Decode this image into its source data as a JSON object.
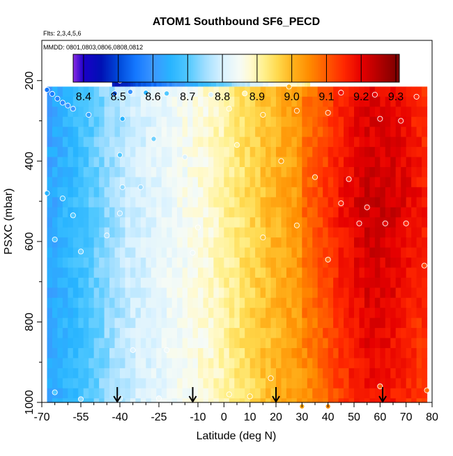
{
  "chart_data": {
    "type": "heatmap",
    "title": "ATOM1 Southbound SF6_PECD",
    "subtitle_flights": "Flts: 2,3,4,5,6",
    "subtitle_dates": "MMDD: 0801,0803,0806,0808,0812",
    "xlabel": "Latitude (deg N)",
    "ylabel": "PSXC (mbar)",
    "xlim": [
      -70,
      80
    ],
    "ylim": [
      1000,
      100
    ],
    "x_ticks": [
      "-70",
      "-55",
      "-40",
      "-25",
      "-10",
      "0",
      "10",
      "20",
      "30",
      "40",
      "50",
      "60",
      "70",
      "80"
    ],
    "x_tick_values": [
      -70,
      -55,
      -40,
      -25,
      -10,
      0,
      10,
      20,
      30,
      40,
      50,
      60,
      70,
      80
    ],
    "x_minor_ticks": [
      -65,
      -60,
      -50,
      -45,
      -35,
      -30,
      -20,
      -15,
      -5,
      5,
      15,
      25,
      35,
      45,
      55,
      65,
      75
    ],
    "y_ticks": [
      "200",
      "400",
      "600",
      "800",
      "1000"
    ],
    "y_tick_values": [
      200,
      400,
      600,
      800,
      1000
    ],
    "y_minor_ticks": [
      300,
      500,
      700,
      900
    ],
    "colorbar": {
      "min": 8.37,
      "max": 9.31,
      "ticks": [
        "8.4",
        "8.5",
        "8.6",
        "8.7",
        "8.8",
        "8.9",
        "9.0",
        "9.1",
        "9.2",
        "9.3"
      ],
      "tick_values": [
        8.4,
        8.5,
        8.6,
        8.7,
        8.8,
        8.9,
        9.0,
        9.1,
        9.2,
        9.3
      ],
      "stops": [
        [
          8.37,
          "#8a2be2"
        ],
        [
          8.4,
          "#1a00c8"
        ],
        [
          8.45,
          "#0010b4"
        ],
        [
          8.5,
          "#0048d8"
        ],
        [
          8.55,
          "#1478ff"
        ],
        [
          8.6,
          "#3c96ff"
        ],
        [
          8.65,
          "#28b4ff"
        ],
        [
          8.7,
          "#50c8ff"
        ],
        [
          8.75,
          "#a0deff"
        ],
        [
          8.8,
          "#daf2ff"
        ],
        [
          8.85,
          "#f6fbf6"
        ],
        [
          8.88,
          "#fffad0"
        ],
        [
          8.92,
          "#fff08c"
        ],
        [
          8.96,
          "#ffd84c"
        ],
        [
          9.0,
          "#ffb41e"
        ],
        [
          9.05,
          "#ff8c00"
        ],
        [
          9.1,
          "#ff5a00"
        ],
        [
          9.15,
          "#ff2800"
        ],
        [
          9.2,
          "#e60000"
        ],
        [
          9.25,
          "#b40000"
        ],
        [
          9.31,
          "#780000"
        ]
      ]
    },
    "grid": false,
    "value_bands": [
      {
        "lat": -68,
        "value": 8.62
      },
      {
        "lat": -55,
        "value": 8.68
      },
      {
        "lat": -45,
        "value": 8.74
      },
      {
        "lat": -35,
        "value": 8.79
      },
      {
        "lat": -25,
        "value": 8.82
      },
      {
        "lat": -15,
        "value": 8.85
      },
      {
        "lat": -5,
        "value": 8.88
      },
      {
        "lat": 5,
        "value": 8.93
      },
      {
        "lat": 15,
        "value": 8.98
      },
      {
        "lat": 25,
        "value": 9.02
      },
      {
        "lat": 35,
        "value": 9.06
      },
      {
        "lat": 45,
        "value": 9.13
      },
      {
        "lat": 55,
        "value": 9.18
      },
      {
        "lat": 65,
        "value": 9.17
      },
      {
        "lat": 78,
        "value": 9.12
      }
    ],
    "upper_layer": {
      "p_top": 160,
      "p_bottom": 215,
      "lat_min": -43,
      "lat_max": 33,
      "points": [
        {
          "lat": -43,
          "value": 8.45
        },
        {
          "lat": -30,
          "value": 8.52
        },
        {
          "lat": -15,
          "value": 8.62
        },
        {
          "lat": 0,
          "value": 8.72
        },
        {
          "lat": 15,
          "value": 8.82
        },
        {
          "lat": 25,
          "value": 8.88
        },
        {
          "lat": 33,
          "value": 8.92
        }
      ]
    },
    "main_field": {
      "p_top": 215,
      "p_bottom": 1000,
      "lat_min": -68,
      "lat_max": 78
    },
    "flight_arrows_lat": [
      -41,
      -12,
      20,
      61
    ],
    "sample_points": [
      {
        "lat": -68,
        "p": 223,
        "value": 8.55
      },
      {
        "lat": -66,
        "p": 233,
        "value": 8.56
      },
      {
        "lat": -64,
        "p": 245,
        "value": 8.57
      },
      {
        "lat": -62,
        "p": 255,
        "value": 8.58
      },
      {
        "lat": -60,
        "p": 262,
        "value": 8.6
      },
      {
        "lat": -58,
        "p": 270,
        "value": 8.6
      },
      {
        "lat": -42,
        "p": 232,
        "value": 8.52
      },
      {
        "lat": -36,
        "p": 228,
        "value": 8.6
      },
      {
        "lat": -30,
        "p": 230,
        "value": 8.65
      },
      {
        "lat": -22,
        "p": 232,
        "value": 8.7
      },
      {
        "lat": -5,
        "p": 235,
        "value": 8.8
      },
      {
        "lat": 8,
        "p": 232,
        "value": 8.9
      },
      {
        "lat": 25,
        "p": 215,
        "value": 9.0
      },
      {
        "lat": 45,
        "p": 230,
        "value": 9.18
      },
      {
        "lat": 58,
        "p": 235,
        "value": 9.2
      },
      {
        "lat": -40,
        "p": 200,
        "value": 8.45
      },
      {
        "lat": -52,
        "p": 285,
        "value": 8.62
      },
      {
        "lat": -39,
        "p": 295,
        "value": 8.65
      },
      {
        "lat": -27,
        "p": 345,
        "value": 8.72
      },
      {
        "lat": -40,
        "p": 385,
        "value": 8.7
      },
      {
        "lat": -15,
        "p": 390,
        "value": 8.8
      },
      {
        "lat": -32,
        "p": 465,
        "value": 8.75
      },
      {
        "lat": -39,
        "p": 465,
        "value": 8.74
      },
      {
        "lat": -40,
        "p": 530,
        "value": 8.76
      },
      {
        "lat": -58,
        "p": 535,
        "value": 8.7
      },
      {
        "lat": -65,
        "p": 595,
        "value": 8.7
      },
      {
        "lat": -55,
        "p": 625,
        "value": 8.72
      },
      {
        "lat": -45,
        "p": 585,
        "value": 8.76
      },
      {
        "lat": -12,
        "p": 628,
        "value": 8.84
      },
      {
        "lat": -10,
        "p": 565,
        "value": 8.86
      },
      {
        "lat": 15,
        "p": 590,
        "value": 8.98
      },
      {
        "lat": 28,
        "p": 560,
        "value": 9.02
      },
      {
        "lat": 40,
        "p": 645,
        "value": 9.08
      },
      {
        "lat": 55,
        "p": 515,
        "value": 9.18
      },
      {
        "lat": 62,
        "p": 555,
        "value": 9.2
      },
      {
        "lat": 70,
        "p": 555,
        "value": 9.15
      },
      {
        "lat": 77,
        "p": 660,
        "value": 9.12
      },
      {
        "lat": 52,
        "p": 555,
        "value": 9.18
      },
      {
        "lat": 45,
        "p": 505,
        "value": 9.15
      },
      {
        "lat": -62,
        "p": 493,
        "value": 8.68
      },
      {
        "lat": -68,
        "p": 480,
        "value": 8.65
      },
      {
        "lat": -65,
        "p": 975,
        "value": 8.7
      },
      {
        "lat": -55,
        "p": 992,
        "value": 8.74
      },
      {
        "lat": -40,
        "p": 990,
        "value": 8.78
      },
      {
        "lat": -25,
        "p": 990,
        "value": 8.84
      },
      {
        "lat": -12,
        "p": 988,
        "value": 8.86
      },
      {
        "lat": 10,
        "p": 985,
        "value": 8.96
      },
      {
        "lat": 30,
        "p": 1010,
        "value": 9.02
      },
      {
        "lat": 40,
        "p": 1010,
        "value": 9.05
      },
      {
        "lat": 60,
        "p": 960,
        "value": 9.1
      },
      {
        "lat": 78,
        "p": 970,
        "value": 9.08
      },
      {
        "lat": -35,
        "p": 870,
        "value": 8.8
      },
      {
        "lat": -22,
        "p": 870,
        "value": 8.84
      },
      {
        "lat": 2,
        "p": 980,
        "value": 8.92
      },
      {
        "lat": 18,
        "p": 940,
        "value": 9.0
      },
      {
        "lat": 5,
        "p": 360,
        "value": 8.92
      },
      {
        "lat": 22,
        "p": 400,
        "value": 9.02
      },
      {
        "lat": 35,
        "p": 440,
        "value": 9.06
      },
      {
        "lat": 48,
        "p": 445,
        "value": 9.15
      },
      {
        "lat": 68,
        "p": 300,
        "value": 9.18
      },
      {
        "lat": 74,
        "p": 240,
        "value": 9.15
      },
      {
        "lat": 60,
        "p": 295,
        "value": 9.2
      },
      {
        "lat": 40,
        "p": 280,
        "value": 9.1
      },
      {
        "lat": 28,
        "p": 275,
        "value": 9.05
      },
      {
        "lat": 15,
        "p": 285,
        "value": 8.98
      },
      {
        "lat": 2,
        "p": 270,
        "value": 8.9
      }
    ]
  }
}
